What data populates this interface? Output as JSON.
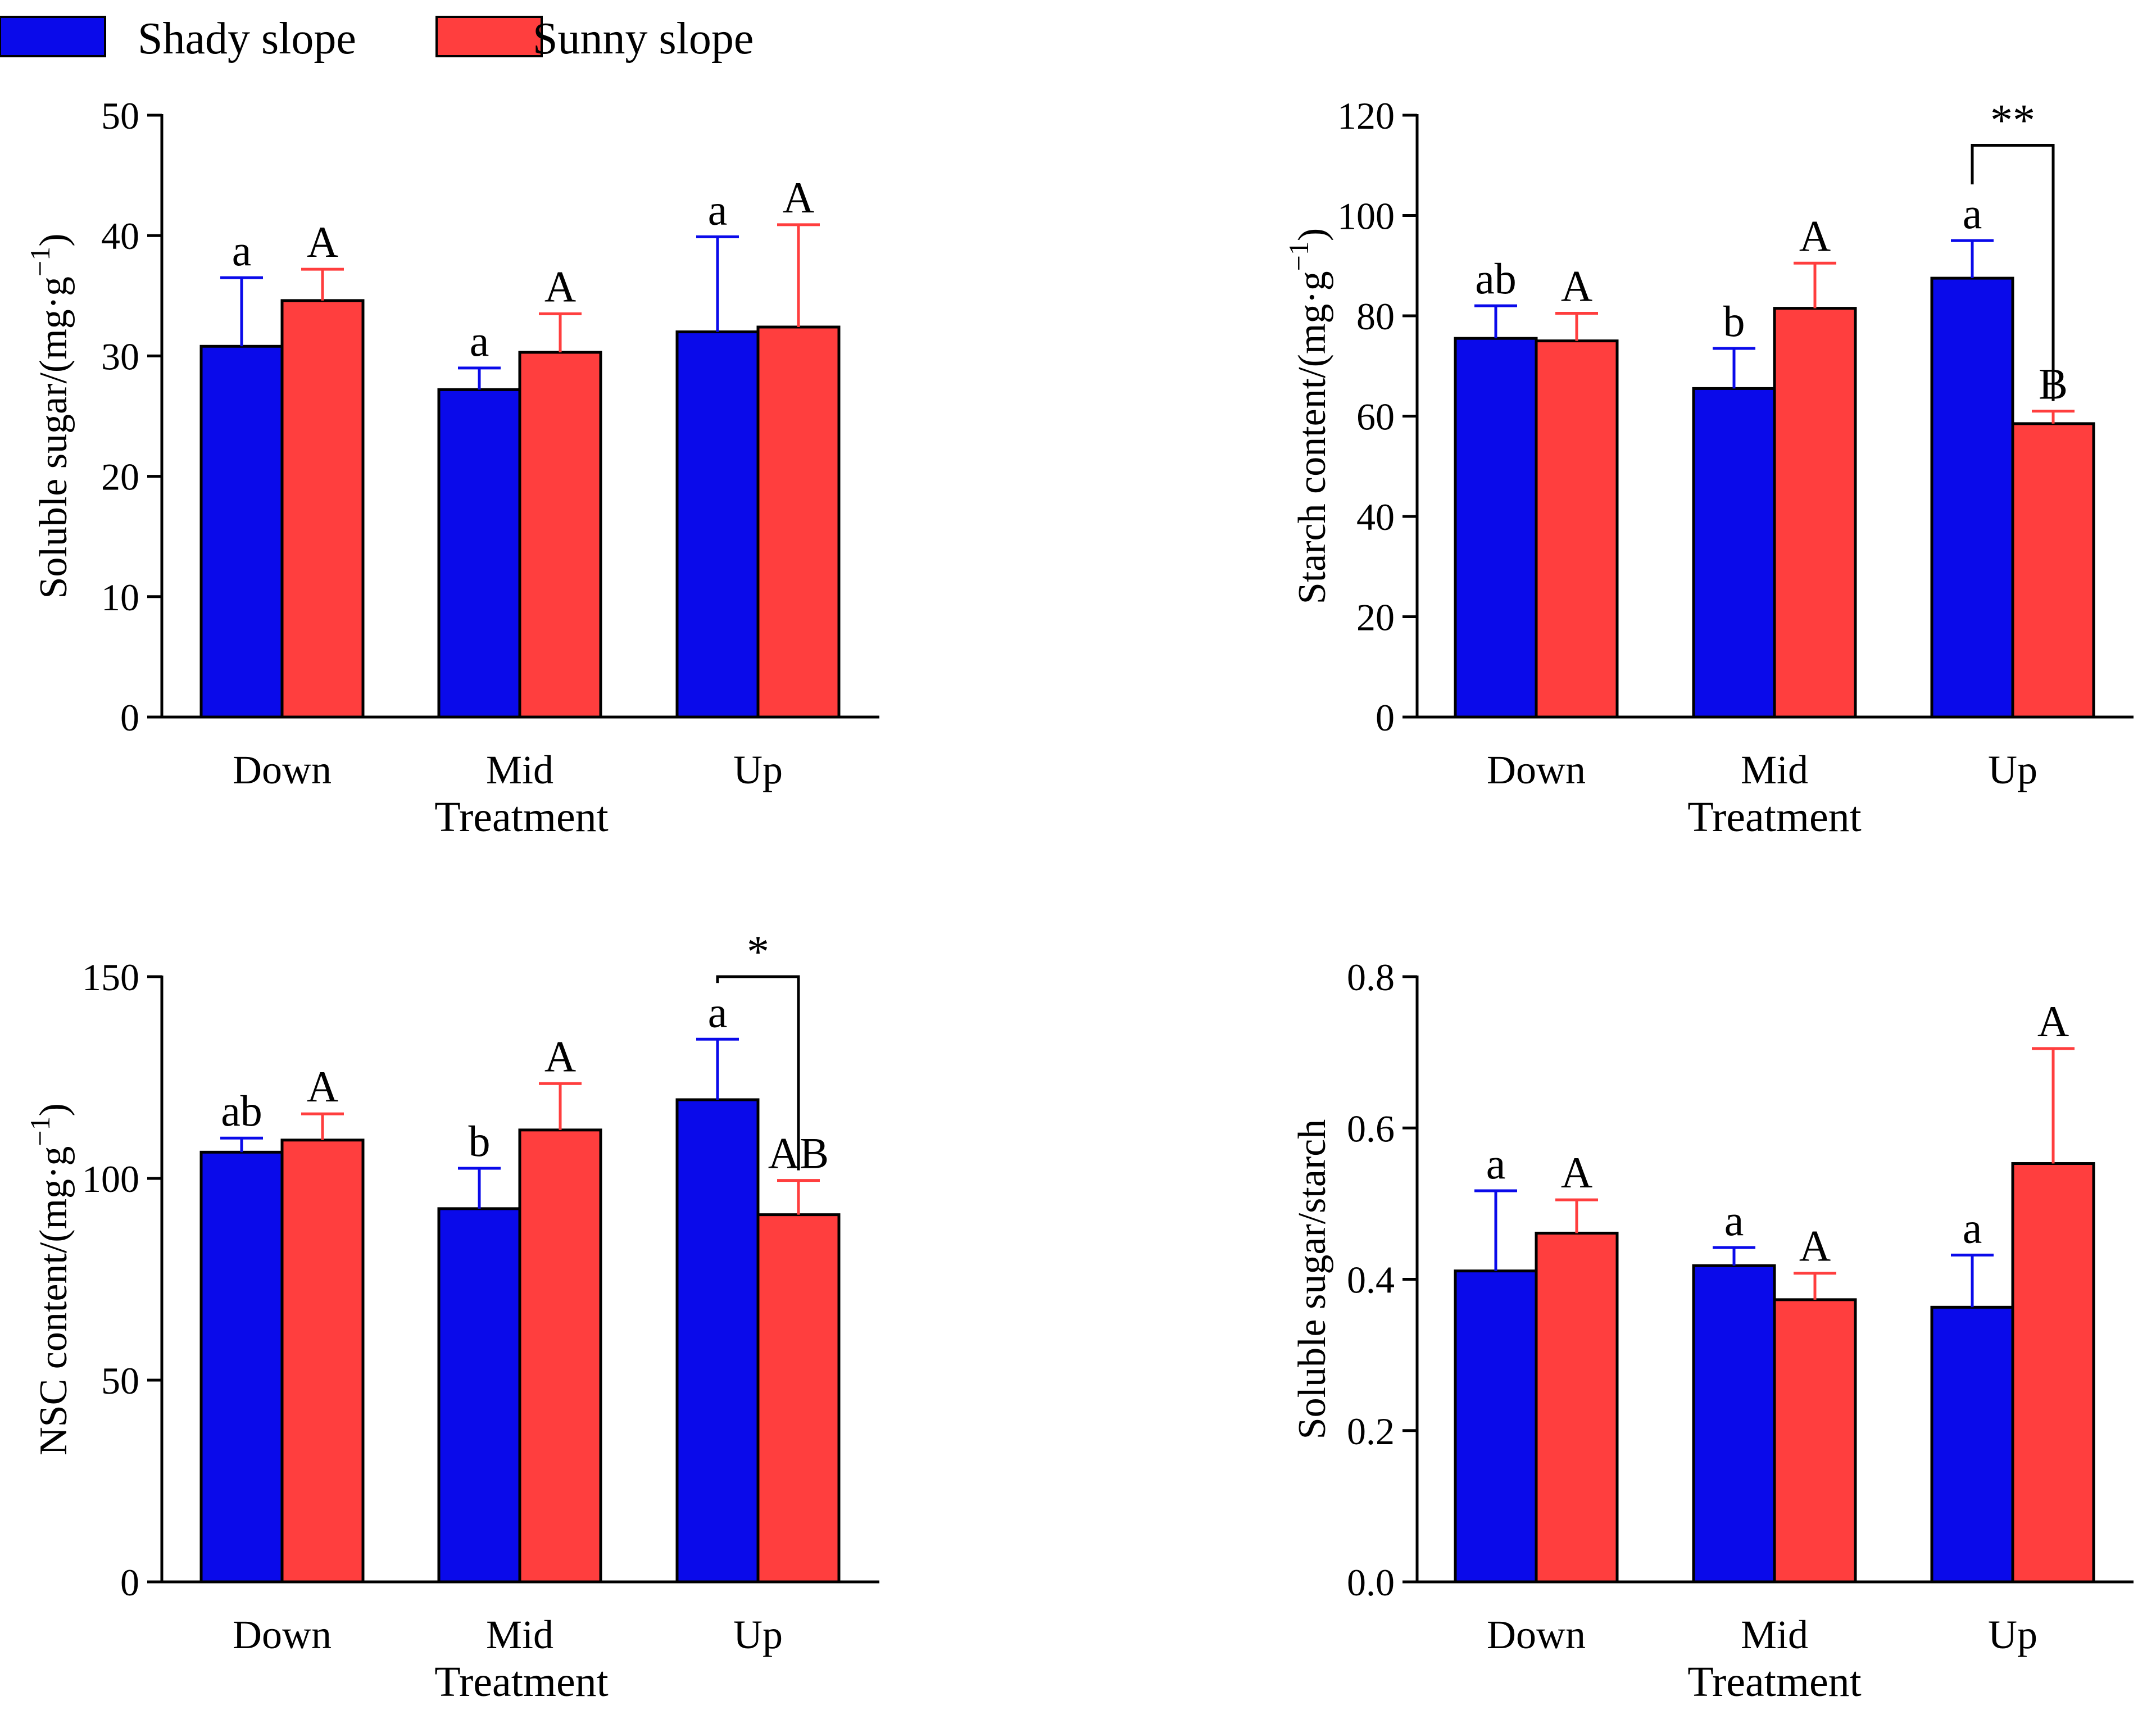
{
  "legend": {
    "entries": [
      {
        "name": "Shady slope",
        "color": "#0a0aea"
      },
      {
        "name": "Sunny slope",
        "color": "#ff3e3e"
      }
    ]
  },
  "colors": {
    "shady": "#0a0aea",
    "sunny": "#ff3e3e",
    "axis": "#000000"
  },
  "chart_data": [
    {
      "type": "bar",
      "title": "",
      "xlabel": "Treatment",
      "ylabel": "Soluble sugar/(mg·g",
      "ylabel_sup": "−1",
      "ylabel_close": ")",
      "categories": [
        "Down",
        "Mid",
        "Up"
      ],
      "ylim": [
        0,
        50
      ],
      "yticks": [
        0,
        10,
        20,
        30,
        40,
        50
      ],
      "tick_labels": [
        "0",
        "10",
        "20",
        "30",
        "40",
        "50"
      ],
      "series": [
        {
          "name": "Shady slope",
          "values": [
            30.8,
            27.2,
            32.0
          ],
          "errors": [
            5.7,
            1.8,
            7.9
          ],
          "letters": [
            "a",
            "a",
            "a"
          ]
        },
        {
          "name": "Sunny slope",
          "values": [
            34.6,
            30.3,
            32.4
          ],
          "errors": [
            2.6,
            3.2,
            8.5
          ],
          "letters": [
            "A",
            "A",
            "A"
          ]
        }
      ],
      "significance": []
    },
    {
      "type": "bar",
      "title": "",
      "xlabel": "Treatment",
      "ylabel": "Starch content/(mg·g",
      "ylabel_sup": "−1",
      "ylabel_close": ")",
      "categories": [
        "Down",
        "Mid",
        "Up"
      ],
      "ylim": [
        0,
        120
      ],
      "yticks": [
        0,
        20,
        40,
        60,
        80,
        100,
        120
      ],
      "tick_labels": [
        "0",
        "20",
        "40",
        "60",
        "80",
        "100",
        "120"
      ],
      "series": [
        {
          "name": "Shady slope",
          "values": [
            75.5,
            65.5,
            87.5
          ],
          "errors": [
            6.5,
            8.0,
            7.5
          ],
          "letters": [
            "ab",
            "b",
            "a"
          ]
        },
        {
          "name": "Sunny slope",
          "values": [
            75.0,
            81.5,
            58.5
          ],
          "errors": [
            5.5,
            9.0,
            2.5
          ],
          "letters": [
            "A",
            "A",
            "B"
          ]
        }
      ],
      "significance": [
        {
          "category": "Up",
          "label": "**",
          "y": 114
        }
      ]
    },
    {
      "type": "bar",
      "title": "",
      "xlabel": "Treatment",
      "ylabel": "NSC content/(mg·g",
      "ylabel_sup": "−1",
      "ylabel_close": ")",
      "categories": [
        "Down",
        "Mid",
        "Up"
      ],
      "ylim": [
        0,
        150
      ],
      "yticks": [
        0,
        50,
        100,
        150
      ],
      "tick_labels": [
        "0",
        "50",
        "100",
        "150"
      ],
      "series": [
        {
          "name": "Shady slope",
          "values": [
            106.5,
            92.5,
            119.5
          ],
          "errors": [
            3.5,
            10.0,
            15.0
          ],
          "letters": [
            "ab",
            "b",
            "a"
          ]
        },
        {
          "name": "Sunny slope",
          "values": [
            109.5,
            112.0,
            91.0
          ],
          "errors": [
            6.5,
            11.5,
            8.5
          ],
          "letters": [
            "A",
            "A",
            "AB"
          ]
        }
      ],
      "significance": [
        {
          "category": "Up",
          "label": "*",
          "y": 150
        }
      ]
    },
    {
      "type": "bar",
      "title": "",
      "xlabel": "Treatment",
      "ylabel": "Soluble sugar/starch",
      "ylabel_sup": "",
      "ylabel_close": "",
      "categories": [
        "Down",
        "Mid",
        "Up"
      ],
      "ylim": [
        0,
        0.8
      ],
      "yticks": [
        0,
        0.2,
        0.4,
        0.6,
        0.8
      ],
      "tick_labels": [
        "0.0",
        "0.2",
        "0.4",
        "0.6",
        "0.8"
      ],
      "series": [
        {
          "name": "Shady slope",
          "values": [
            0.411,
            0.418,
            0.363
          ],
          "errors": [
            0.106,
            0.024,
            0.069
          ],
          "letters": [
            "a",
            "a",
            "a"
          ]
        },
        {
          "name": "Sunny slope",
          "values": [
            0.461,
            0.373,
            0.553
          ],
          "errors": [
            0.044,
            0.035,
            0.152
          ],
          "letters": [
            "A",
            "A",
            "A"
          ]
        }
      ],
      "significance": []
    }
  ]
}
